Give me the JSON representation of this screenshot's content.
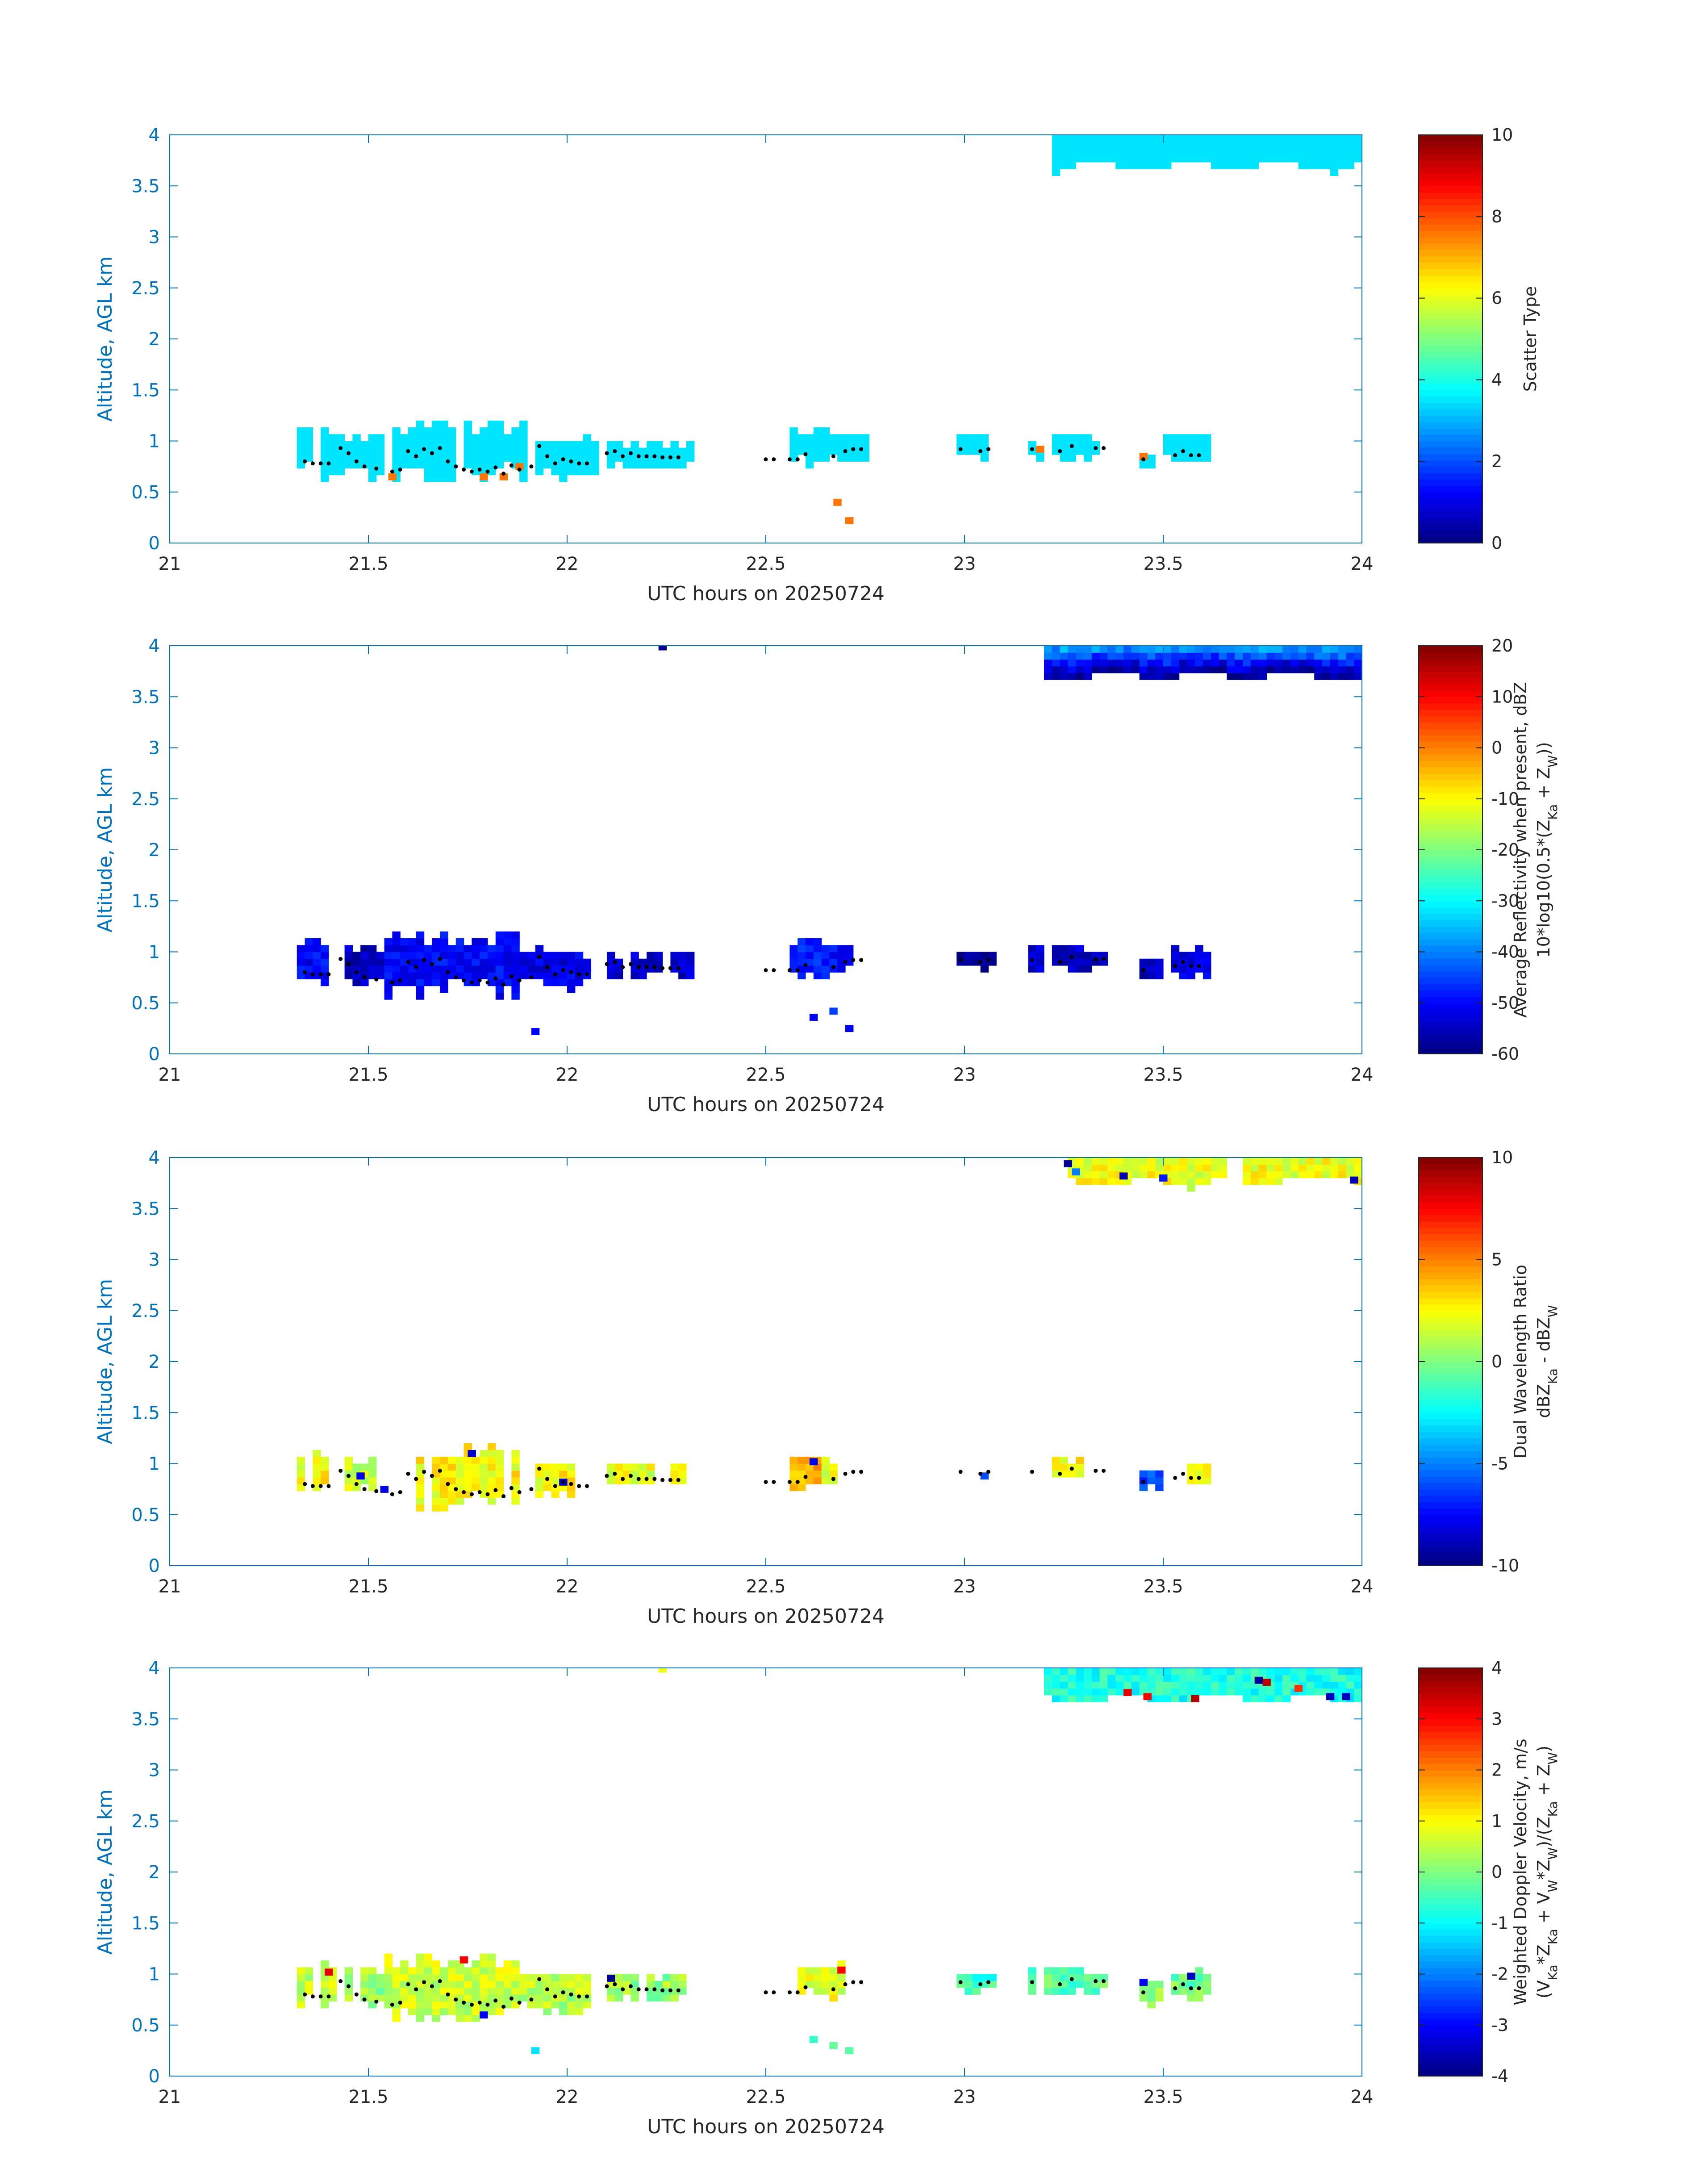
{
  "colormap": "jet",
  "colors": {
    "axis": "#0072bd",
    "label_text": "#262626",
    "marker": "#000000",
    "background": "#ffffff"
  },
  "chart_data": [
    {
      "type": "heatmap",
      "xlabel": "UTC hours on 20250724",
      "ylabel": "Altitude, AGL km",
      "xlim": [
        21,
        24
      ],
      "ylim": [
        0,
        4
      ],
      "xticks": [
        "21",
        "21.5",
        "22",
        "22.5",
        "23",
        "23.5",
        "24"
      ],
      "yticks": [
        "0",
        "0.5",
        "1",
        "1.5",
        "2",
        "2.5",
        "3",
        "3.5",
        "4"
      ],
      "colorbar": {
        "title_lines": [
          "Scatter Type"
        ],
        "range": [
          0,
          10
        ],
        "ticks": [
          "0",
          "2",
          "4",
          "6",
          "8",
          "10"
        ]
      },
      "regions": [
        {
          "x0": 21.33,
          "x1": 21.4,
          "y0": 0.72,
          "y1": 1.12,
          "v": 3.5,
          "bottom": "rough"
        },
        {
          "x0": 21.4,
          "x1": 21.56,
          "y0": 0.65,
          "y1": 1.08,
          "v": 3.5,
          "bottom": "rough"
        },
        {
          "x0": 21.57,
          "x1": 21.9,
          "y0": 0.6,
          "y1": 1.2,
          "v": 3.5,
          "bottom": "rough"
        },
        {
          "x0": 21.93,
          "x1": 22.08,
          "y0": 0.65,
          "y1": 1.02,
          "v": 3.5,
          "bottom": "rough"
        },
        {
          "x0": 22.1,
          "x1": 22.3,
          "y0": 0.75,
          "y1": 0.97,
          "v": 3.5,
          "bottom": "rough"
        },
        {
          "x0": 22.58,
          "x1": 22.66,
          "y0": 0.75,
          "y1": 1.12,
          "v": 3.5,
          "bottom": "rough"
        },
        {
          "x0": 22.66,
          "x1": 22.75,
          "y0": 0.82,
          "y1": 1.06,
          "v": 3.5,
          "bottom": "rough"
        },
        {
          "x0": 22.99,
          "x1": 23.06,
          "y0": 0.85,
          "y1": 1.05,
          "v": 3.5,
          "bottom": "rough"
        },
        {
          "x0": 23.16,
          "x1": 23.2,
          "y0": 0.85,
          "y1": 0.95,
          "v": 3.5,
          "bottom": "rough"
        },
        {
          "x0": 23.23,
          "x1": 23.3,
          "y0": 0.82,
          "y1": 1.05,
          "v": 3.5,
          "bottom": "rough"
        },
        {
          "x0": 23.31,
          "x1": 23.34,
          "y0": 0.88,
          "y1": 0.98,
          "v": 3.5,
          "bottom": "rough"
        },
        {
          "x0": 23.44,
          "x1": 23.47,
          "y0": 0.75,
          "y1": 0.88,
          "v": 3.5,
          "bottom": "rough"
        },
        {
          "x0": 23.52,
          "x1": 23.6,
          "y0": 0.78,
          "y1": 1.06,
          "v": 3.5,
          "bottom": "rough"
        },
        {
          "x0": 23.24,
          "x1": 24.0,
          "y0": 3.65,
          "y1": 4.0,
          "v": 3.5,
          "bottom": "wavy"
        }
      ],
      "points": [
        {
          "x": 21.56,
          "y": 0.65,
          "v": 7.6
        },
        {
          "x": 21.79,
          "y": 0.65,
          "v": 7.6
        },
        {
          "x": 21.84,
          "y": 0.65,
          "v": 7.6
        },
        {
          "x": 21.88,
          "y": 0.75,
          "v": 7.6
        },
        {
          "x": 22.68,
          "y": 0.4,
          "v": 7.6
        },
        {
          "x": 22.71,
          "y": 0.22,
          "v": 7.6
        },
        {
          "x": 23.19,
          "y": 0.92,
          "v": 7.6
        },
        {
          "x": 23.45,
          "y": 0.85,
          "v": 7.6
        }
      ]
    },
    {
      "type": "heatmap",
      "xlabel": "UTC hours on 20250724",
      "ylabel": "Altitude, AGL km",
      "xlim": [
        21,
        24
      ],
      "ylim": [
        0,
        4
      ],
      "xticks": [
        "21",
        "21.5",
        "22",
        "22.5",
        "23",
        "23.5",
        "24"
      ],
      "yticks": [
        "0",
        "0.5",
        "1",
        "1.5",
        "2",
        "2.5",
        "3",
        "3.5",
        "4"
      ],
      "colorbar": {
        "title_lines": [
          "Average Reflectivity when present, dBZ",
          "10*log10(0.5*(Z_Ka + Z_W))"
        ],
        "range": [
          -60,
          20
        ],
        "ticks": [
          "-60",
          "-50",
          "-40",
          "-30",
          "-20",
          "-10",
          "0",
          "10",
          "20"
        ]
      },
      "regions": [
        {
          "x0": 21.33,
          "x1": 21.4,
          "y0": 0.68,
          "y1": 1.12,
          "v": -50,
          "bottom": "rough"
        },
        {
          "x0": 21.44,
          "x1": 21.53,
          "y0": 0.68,
          "y1": 1.05,
          "v": -55,
          "bottom": "rough"
        },
        {
          "x0": 21.55,
          "x1": 21.88,
          "y0": 0.55,
          "y1": 1.18,
          "v": -50,
          "bottom": "rough"
        },
        {
          "x0": 21.9,
          "x1": 22.05,
          "y0": 0.65,
          "y1": 1.02,
          "v": -52,
          "bottom": "rough"
        },
        {
          "x0": 22.1,
          "x1": 22.3,
          "y0": 0.75,
          "y1": 0.98,
          "v": -54,
          "bottom": "rough"
        },
        {
          "x0": 22.58,
          "x1": 22.66,
          "y0": 0.75,
          "y1": 1.12,
          "v": -48,
          "bottom": "rough"
        },
        {
          "x0": 22.66,
          "x1": 22.72,
          "y0": 0.82,
          "y1": 1.06,
          "v": -50,
          "bottom": "rough"
        },
        {
          "x0": 22.99,
          "x1": 23.07,
          "y0": 0.85,
          "y1": 0.98,
          "v": -58,
          "bottom": "rough"
        },
        {
          "x0": 23.17,
          "x1": 23.28,
          "y0": 0.82,
          "y1": 1.06,
          "v": -54,
          "bottom": "rough"
        },
        {
          "x0": 23.3,
          "x1": 23.35,
          "y0": 0.85,
          "y1": 0.98,
          "v": -56,
          "bottom": "rough"
        },
        {
          "x0": 23.45,
          "x1": 23.48,
          "y0": 0.75,
          "y1": 0.92,
          "v": -55,
          "bottom": "rough"
        },
        {
          "x0": 23.53,
          "x1": 23.6,
          "y0": 0.76,
          "y1": 1.02,
          "v": -52,
          "bottom": "rough"
        },
        {
          "x0": 23.22,
          "x1": 24.0,
          "y0": 3.66,
          "y1": 4.0,
          "v": -45,
          "bottom": "wavy",
          "kind": "reflectivity_top"
        }
      ],
      "points": [
        {
          "x": 22.24,
          "y": 3.99,
          "v": -58
        },
        {
          "x": 21.92,
          "y": 0.22,
          "v": -50
        },
        {
          "x": 22.62,
          "y": 0.36,
          "v": -50
        },
        {
          "x": 22.67,
          "y": 0.42,
          "v": -45
        },
        {
          "x": 22.71,
          "y": 0.25,
          "v": -50
        }
      ]
    },
    {
      "type": "heatmap",
      "xlabel": "UTC hours on 20250724",
      "ylabel": "Altitude, AGL km",
      "xlim": [
        21,
        24
      ],
      "ylim": [
        0,
        4
      ],
      "xticks": [
        "21",
        "21.5",
        "22",
        "22.5",
        "23",
        "23.5",
        "24"
      ],
      "yticks": [
        "0",
        "0.5",
        "1",
        "1.5",
        "2",
        "2.5",
        "3",
        "3.5",
        "4"
      ],
      "colorbar": {
        "title_lines": [
          "Dual Wavelength Ratio",
          "dBZ_Ka - dBZ_W"
        ],
        "range": [
          -10,
          10
        ],
        "ticks": [
          "-10",
          "-5",
          "0",
          "5",
          "10"
        ]
      },
      "regions": [
        {
          "x0": 21.33,
          "x1": 21.4,
          "y0": 0.72,
          "y1": 1.1,
          "v": 2.5,
          "bottom": "rough"
        },
        {
          "x0": 21.45,
          "x1": 21.52,
          "y0": 0.75,
          "y1": 1.05,
          "v": 1.5,
          "bottom": "rough"
        },
        {
          "x0": 21.6,
          "x1": 21.88,
          "y0": 0.55,
          "y1": 1.18,
          "v": 2.5,
          "bottom": "rough"
        },
        {
          "x0": 21.93,
          "x1": 22.02,
          "y0": 0.68,
          "y1": 1.0,
          "v": 2.5,
          "bottom": "rough"
        },
        {
          "x0": 22.1,
          "x1": 22.28,
          "y0": 0.8,
          "y1": 0.98,
          "v": 2.0,
          "bottom": "rough"
        },
        {
          "x0": 22.58,
          "x1": 22.63,
          "y0": 0.75,
          "y1": 1.1,
          "v": 4.0,
          "bottom": "rough"
        },
        {
          "x0": 22.64,
          "x1": 22.7,
          "y0": 0.85,
          "y1": 1.02,
          "v": 2.0,
          "bottom": "rough"
        },
        {
          "x0": 23.23,
          "x1": 23.28,
          "y0": 0.85,
          "y1": 1.02,
          "v": 2.5,
          "bottom": "rough"
        },
        {
          "x0": 23.45,
          "x1": 23.48,
          "y0": 0.75,
          "y1": 0.9,
          "v": -6.0,
          "bottom": "rough"
        },
        {
          "x0": 23.57,
          "x1": 23.6,
          "y0": 0.82,
          "y1": 0.95,
          "v": 2.0,
          "bottom": "rough"
        },
        {
          "x0": 23.26,
          "x1": 23.65,
          "y0": 3.72,
          "y1": 4.0,
          "v": 2.2,
          "bottom": "wavy"
        },
        {
          "x0": 23.72,
          "x1": 24.0,
          "y0": 3.76,
          "y1": 4.0,
          "v": 2.2,
          "bottom": "wavy"
        }
      ],
      "points": [
        {
          "x": 23.26,
          "y": 3.94,
          "v": -9.5
        },
        {
          "x": 23.28,
          "y": 3.86,
          "v": -5
        },
        {
          "x": 23.4,
          "y": 3.82,
          "v": -9.0
        },
        {
          "x": 23.5,
          "y": 3.8,
          "v": -7.0
        },
        {
          "x": 23.98,
          "y": 3.78,
          "v": -9.0
        },
        {
          "x": 23.05,
          "y": 0.88,
          "v": -6.0
        },
        {
          "x": 22.62,
          "y": 1.02,
          "v": -8.0
        },
        {
          "x": 21.76,
          "y": 1.1,
          "v": -8.5
        },
        {
          "x": 21.99,
          "y": 0.82,
          "v": -8.0
        },
        {
          "x": 21.54,
          "y": 0.75,
          "v": -8.0
        },
        {
          "x": 21.48,
          "y": 0.88,
          "v": -8.0
        }
      ]
    },
    {
      "type": "heatmap",
      "xlabel": "UTC hours on 20250724",
      "ylabel": "Altitude, AGL km",
      "xlim": [
        21,
        24
      ],
      "ylim": [
        0,
        4
      ],
      "xticks": [
        "21",
        "21.5",
        "22",
        "22.5",
        "23",
        "23.5",
        "24"
      ],
      "yticks": [
        "0",
        "0.5",
        "1",
        "1.5",
        "2",
        "2.5",
        "3",
        "3.5",
        "4"
      ],
      "colorbar": {
        "title_lines": [
          "Weighted Doppler Velocity, m/s",
          "(V_Ka*Z_Ka + V_W*Z_W)/(Z_Ka + Z_W)"
        ],
        "range": [
          -4,
          4
        ],
        "ticks": [
          "-4",
          "-3",
          "-2",
          "-1",
          "0",
          "1",
          "2",
          "3",
          "4"
        ]
      },
      "regions": [
        {
          "x0": 21.33,
          "x1": 21.41,
          "y0": 0.7,
          "y1": 1.12,
          "v": 0.6,
          "bottom": "rough"
        },
        {
          "x0": 21.44,
          "x1": 21.53,
          "y0": 0.68,
          "y1": 1.06,
          "v": 0.2,
          "bottom": "rough"
        },
        {
          "x0": 21.55,
          "x1": 21.88,
          "y0": 0.55,
          "y1": 1.18,
          "v": 0.6,
          "bottom": "rough"
        },
        {
          "x0": 21.9,
          "x1": 22.05,
          "y0": 0.6,
          "y1": 1.02,
          "v": 0.4,
          "bottom": "rough"
        },
        {
          "x0": 22.1,
          "x1": 22.3,
          "y0": 0.74,
          "y1": 0.98,
          "v": 0.2,
          "bottom": "rough"
        },
        {
          "x0": 22.58,
          "x1": 22.72,
          "y0": 0.75,
          "y1": 1.1,
          "v": 0.8,
          "bottom": "rough"
        },
        {
          "x0": 22.99,
          "x1": 23.07,
          "y0": 0.85,
          "y1": 0.98,
          "v": -0.6,
          "bottom": "rough"
        },
        {
          "x0": 23.17,
          "x1": 23.28,
          "y0": 0.82,
          "y1": 1.06,
          "v": -0.3,
          "bottom": "rough"
        },
        {
          "x0": 23.3,
          "x1": 23.35,
          "y0": 0.85,
          "y1": 0.98,
          "v": -0.2,
          "bottom": "rough"
        },
        {
          "x0": 23.45,
          "x1": 23.48,
          "y0": 0.72,
          "y1": 0.94,
          "v": 0.0,
          "bottom": "rough"
        },
        {
          "x0": 23.53,
          "x1": 23.6,
          "y0": 0.74,
          "y1": 1.02,
          "v": -0.1,
          "bottom": "rough"
        },
        {
          "x0": 23.22,
          "x1": 24.0,
          "y0": 3.66,
          "y1": 4.0,
          "v": -0.8,
          "bottom": "wavy"
        }
      ],
      "points": [
        {
          "x": 22.24,
          "y": 3.99,
          "v": 0.9
        },
        {
          "x": 21.92,
          "y": 0.25,
          "v": -1.2
        },
        {
          "x": 22.62,
          "y": 0.36,
          "v": -0.6
        },
        {
          "x": 22.67,
          "y": 0.3,
          "v": -0.2
        },
        {
          "x": 22.71,
          "y": 0.25,
          "v": -0.3
        },
        {
          "x": 23.41,
          "y": 3.76,
          "v": 3.2
        },
        {
          "x": 23.46,
          "y": 3.72,
          "v": 3.0
        },
        {
          "x": 23.58,
          "y": 3.7,
          "v": 3.6
        },
        {
          "x": 23.76,
          "y": 3.86,
          "v": 3.5
        },
        {
          "x": 23.84,
          "y": 3.8,
          "v": 2.6
        },
        {
          "x": 23.92,
          "y": 3.72,
          "v": -3.5
        },
        {
          "x": 23.96,
          "y": 3.72,
          "v": -3.5
        },
        {
          "x": 23.74,
          "y": 3.88,
          "v": -3.8
        },
        {
          "x": 22.11,
          "y": 0.96,
          "v": -3.8
        },
        {
          "x": 21.79,
          "y": 0.6,
          "v": -3.0
        },
        {
          "x": 21.4,
          "y": 1.02,
          "v": 3.2
        },
        {
          "x": 21.74,
          "y": 1.14,
          "v": 3.0
        },
        {
          "x": 22.69,
          "y": 1.04,
          "v": 3.0
        },
        {
          "x": 23.45,
          "y": 0.92,
          "v": -3.0
        },
        {
          "x": 23.57,
          "y": 0.98,
          "v": -3.5
        }
      ]
    }
  ],
  "cloud_base_markers": {
    "x": [
      21.34,
      21.36,
      21.38,
      21.4,
      21.43,
      21.45,
      21.47,
      21.49,
      21.52,
      21.56,
      21.58,
      21.6,
      21.62,
      21.64,
      21.66,
      21.68,
      21.7,
      21.72,
      21.74,
      21.76,
      21.78,
      21.8,
      21.82,
      21.84,
      21.86,
      21.88,
      21.91,
      21.93,
      21.95,
      21.97,
      21.99,
      22.01,
      22.03,
      22.05,
      22.1,
      22.12,
      22.14,
      22.16,
      22.18,
      22.2,
      22.22,
      22.24,
      22.26,
      22.28,
      22.5,
      22.52,
      22.56,
      22.58,
      22.6,
      22.67,
      22.7,
      22.72,
      22.74,
      22.99,
      23.04,
      23.06,
      23.17,
      23.24,
      23.27,
      23.33,
      23.35,
      23.45,
      23.53,
      23.55,
      23.57,
      23.59
    ],
    "y": [
      0.8,
      0.78,
      0.78,
      0.78,
      0.93,
      0.88,
      0.8,
      0.75,
      0.73,
      0.7,
      0.72,
      0.9,
      0.85,
      0.92,
      0.88,
      0.93,
      0.8,
      0.75,
      0.72,
      0.7,
      0.72,
      0.7,
      0.74,
      0.68,
      0.76,
      0.72,
      0.75,
      0.95,
      0.85,
      0.78,
      0.82,
      0.8,
      0.78,
      0.78,
      0.88,
      0.9,
      0.85,
      0.88,
      0.85,
      0.85,
      0.85,
      0.84,
      0.84,
      0.84,
      0.82,
      0.82,
      0.82,
      0.82,
      0.87,
      0.85,
      0.9,
      0.92,
      0.92,
      0.92,
      0.9,
      0.92,
      0.92,
      0.9,
      0.95,
      0.93,
      0.93,
      0.82,
      0.86,
      0.9,
      0.86,
      0.86
    ]
  }
}
